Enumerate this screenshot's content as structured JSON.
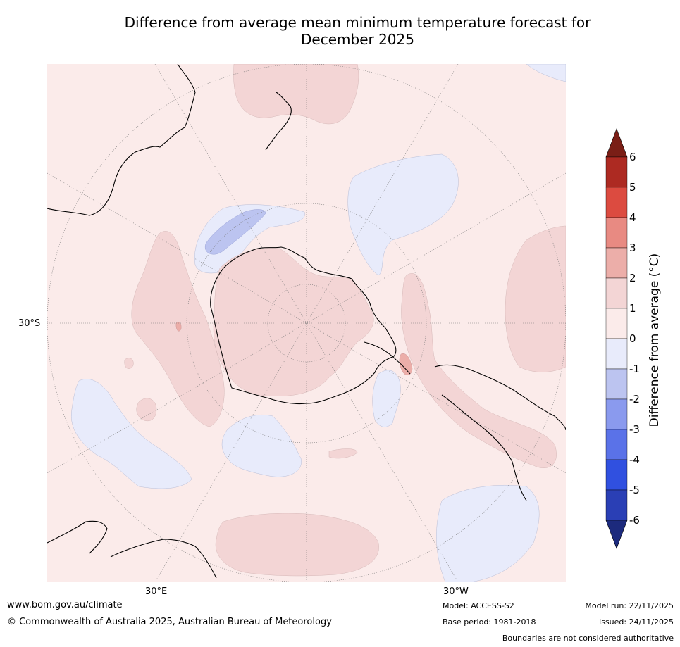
{
  "title": {
    "line1": "Difference from average mean minimum temperature forecast for",
    "line2": "December 2025"
  },
  "map": {
    "projection": "south-polar stereographic",
    "labels": {
      "lat_30s": "30°S",
      "lon_30e": "30°E",
      "lon_30w": "30°W"
    },
    "colors": {
      "anom_0_1": "#fbebea",
      "anom_1_2": "#f3d5d5",
      "anom_2_3": "#ecaea9",
      "anom_m1_0": "#e8ebfb",
      "anom_m2_m1": "#bcc4f0",
      "coastline": "#000000",
      "graticule": "#777777"
    }
  },
  "colorbar": {
    "label": "Difference from average (°C)",
    "ticks": [
      "6",
      "5",
      "4",
      "3",
      "2",
      "1",
      "0",
      "-1",
      "-2",
      "-3",
      "-4",
      "-5",
      "-6"
    ],
    "bands": [
      {
        "from": 6,
        "color": "#7a1e16"
      },
      {
        "from": 5,
        "color": "#ad2a22"
      },
      {
        "from": 4,
        "color": "#dc4b40"
      },
      {
        "from": 3,
        "color": "#e88a82"
      },
      {
        "from": 2,
        "color": "#ecaea9"
      },
      {
        "from": 1,
        "color": "#f3d5d5"
      },
      {
        "from": 0,
        "color": "#fbebea"
      },
      {
        "from": -1,
        "color": "#e8ebfb"
      },
      {
        "from": -2,
        "color": "#bcc4f0"
      },
      {
        "from": -3,
        "color": "#8a9aee"
      },
      {
        "from": -4,
        "color": "#5a72e8"
      },
      {
        "from": -5,
        "color": "#3050e0"
      },
      {
        "from": -6,
        "color": "#2a3fb5"
      },
      {
        "from": -7,
        "color": "#1c2a7d"
      }
    ]
  },
  "footer": {
    "website": "www.bom.gov.au/climate",
    "copyright": "© Commonwealth of Australia 2025, Australian Bureau of Meteorology",
    "model": "Model: ACCESS-S2",
    "base_period": "Base period: 1981-2018",
    "model_run": "Model run: 22/11/2025",
    "issued": "Issued: 24/11/2025",
    "disclaimer": "Boundaries are not considered authoritative"
  }
}
